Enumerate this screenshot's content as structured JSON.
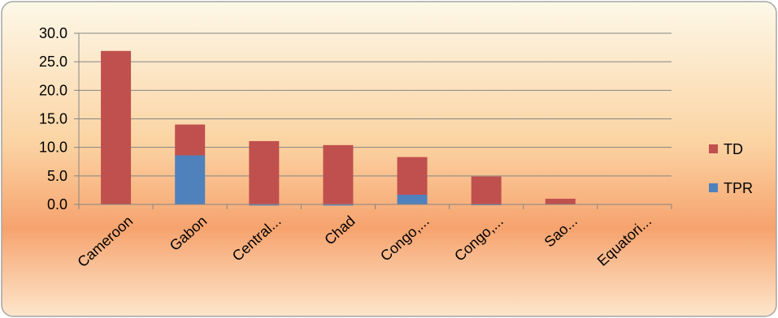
{
  "chart_data": {
    "type": "bar",
    "stacked": true,
    "categories": [
      "Cameroon",
      "Gabon",
      "Central...",
      "Chad",
      "Congo,...",
      "Congo,...",
      "Sao...",
      "Equatori..."
    ],
    "series": [
      {
        "name": "TPR",
        "color": "#4f81bd",
        "values": [
          0.0,
          8.6,
          -0.2,
          -0.2,
          1.7,
          -0.1,
          0.0,
          0.0
        ]
      },
      {
        "name": "TD",
        "color": "#c0504d",
        "values": [
          26.9,
          5.4,
          11.1,
          10.4,
          6.6,
          4.9,
          1.0,
          0.0
        ]
      }
    ],
    "yticks": [
      "30.0",
      "25.0",
      "20.0",
      "15.0",
      "10.0",
      "5.0",
      "0.0"
    ],
    "ylim": [
      0,
      30
    ],
    "grid": true,
    "legend": {
      "position": "right",
      "entries": [
        "TD",
        "TPR"
      ]
    },
    "title": "",
    "xlabel": "",
    "ylabel": ""
  },
  "style": {
    "background_gradient": [
      "#fdf8e8",
      "#fbd7a6",
      "#f6a06d",
      "#fde5c8"
    ],
    "border_color": "#a5a5a5",
    "gridline_color": "#868686",
    "axis_color": "#868686"
  }
}
